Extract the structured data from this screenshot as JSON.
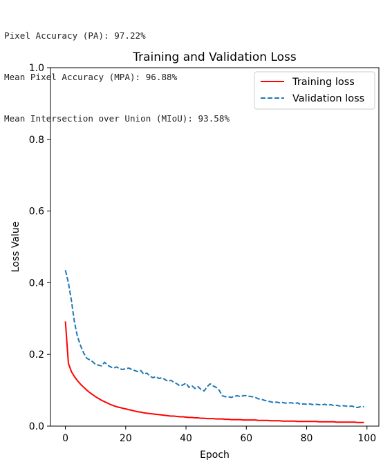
{
  "output": {
    "lines": [
      "Pixel Accuracy (PA): 97.22%",
      "Mean Pixel Accuracy (MPA): 96.88%",
      "Mean Intersection over Union (MIoU): 93.58%"
    ]
  },
  "colors": {
    "training": "#ff0000",
    "validation": "#1f77b4",
    "axis": "#000000",
    "text": "#212121"
  },
  "chart_data": {
    "type": "line",
    "title": "Training and Validation Loss",
    "xlabel": "Epoch",
    "ylabel": "Loss Value",
    "xlim": [
      -4.95,
      103.95
    ],
    "ylim": [
      0.0,
      1.0
    ],
    "xticks": [
      0,
      20,
      40,
      60,
      80,
      100
    ],
    "xtick_labels": [
      "0",
      "20",
      "40",
      "60",
      "80",
      "100"
    ],
    "yticks": [
      0.0,
      0.2,
      0.4,
      0.6,
      0.8,
      1.0
    ],
    "ytick_labels": [
      "0.0",
      "0.2",
      "0.4",
      "0.6",
      "0.8",
      "1.0"
    ],
    "grid": false,
    "legend_position": "top-right",
    "x": [
      0,
      1,
      2,
      3,
      4,
      5,
      6,
      7,
      8,
      9,
      10,
      11,
      12,
      13,
      14,
      15,
      16,
      17,
      18,
      19,
      20,
      21,
      22,
      23,
      24,
      25,
      26,
      27,
      28,
      29,
      30,
      31,
      32,
      33,
      34,
      35,
      36,
      37,
      38,
      39,
      40,
      41,
      42,
      43,
      44,
      45,
      46,
      47,
      48,
      49,
      50,
      51,
      52,
      53,
      54,
      55,
      56,
      57,
      58,
      59,
      60,
      61,
      62,
      63,
      64,
      65,
      66,
      67,
      68,
      69,
      70,
      71,
      72,
      73,
      74,
      75,
      76,
      77,
      78,
      79,
      80,
      81,
      82,
      83,
      84,
      85,
      86,
      87,
      88,
      89,
      90,
      91,
      92,
      93,
      94,
      95,
      96,
      97,
      98,
      99
    ],
    "series": [
      {
        "name": "Training loss",
        "style": "solid",
        "values": [
          0.292,
          0.175,
          0.152,
          0.138,
          0.127,
          0.117,
          0.109,
          0.101,
          0.094,
          0.088,
          0.082,
          0.077,
          0.072,
          0.068,
          0.064,
          0.06,
          0.057,
          0.054,
          0.052,
          0.05,
          0.048,
          0.046,
          0.044,
          0.042,
          0.04,
          0.039,
          0.037,
          0.036,
          0.035,
          0.034,
          0.033,
          0.032,
          0.031,
          0.03,
          0.029,
          0.028,
          0.028,
          0.027,
          0.026,
          0.026,
          0.025,
          0.024,
          0.024,
          0.023,
          0.023,
          0.022,
          0.022,
          0.021,
          0.021,
          0.021,
          0.02,
          0.02,
          0.02,
          0.019,
          0.019,
          0.018,
          0.018,
          0.018,
          0.018,
          0.017,
          0.017,
          0.017,
          0.017,
          0.017,
          0.016,
          0.016,
          0.016,
          0.016,
          0.015,
          0.015,
          0.015,
          0.015,
          0.014,
          0.014,
          0.014,
          0.014,
          0.014,
          0.013,
          0.013,
          0.013,
          0.013,
          0.013,
          0.013,
          0.013,
          0.012,
          0.012,
          0.012,
          0.012,
          0.012,
          0.012,
          0.011,
          0.011,
          0.011,
          0.011,
          0.011,
          0.011,
          0.011,
          0.01,
          0.01,
          0.01
        ]
      },
      {
        "name": "Validation loss",
        "style": "dashed",
        "values": [
          0.435,
          0.4,
          0.35,
          0.29,
          0.25,
          0.225,
          0.205,
          0.19,
          0.185,
          0.18,
          0.172,
          0.17,
          0.168,
          0.178,
          0.17,
          0.165,
          0.162,
          0.165,
          0.16,
          0.158,
          0.16,
          0.162,
          0.158,
          0.155,
          0.152,
          0.155,
          0.145,
          0.148,
          0.14,
          0.135,
          0.138,
          0.133,
          0.135,
          0.13,
          0.125,
          0.128,
          0.122,
          0.118,
          0.112,
          0.115,
          0.12,
          0.108,
          0.112,
          0.105,
          0.11,
          0.102,
          0.098,
          0.11,
          0.118,
          0.112,
          0.108,
          0.1,
          0.085,
          0.082,
          0.082,
          0.08,
          0.083,
          0.085,
          0.082,
          0.085,
          0.085,
          0.083,
          0.082,
          0.08,
          0.076,
          0.075,
          0.072,
          0.07,
          0.068,
          0.066,
          0.067,
          0.065,
          0.066,
          0.064,
          0.065,
          0.065,
          0.063,
          0.065,
          0.06,
          0.062,
          0.061,
          0.062,
          0.06,
          0.061,
          0.06,
          0.059,
          0.061,
          0.058,
          0.06,
          0.057,
          0.058,
          0.056,
          0.057,
          0.056,
          0.055,
          0.056,
          0.053,
          0.052,
          0.055,
          0.054
        ]
      }
    ]
  }
}
